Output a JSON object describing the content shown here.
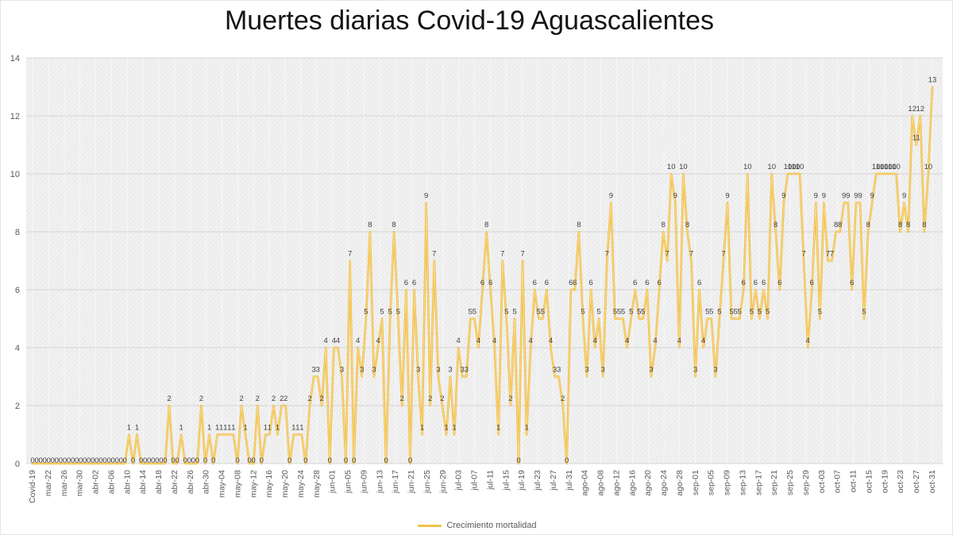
{
  "title": "Muertes diarias Covid-19 Aguascalientes",
  "legend": {
    "label": "Crecimiento mortalidad"
  },
  "colors": {
    "line_outer": "#efb93e",
    "line_inner": "#fbda84",
    "gridline": "#d4d4d4",
    "plot_base": "#ececec",
    "hatch_line": "#f9f9f9",
    "axis_text": "#595959",
    "data_label": "#3f3f3f",
    "title_text": "#141414"
  },
  "chart_data": {
    "type": "line",
    "title": "Muertes diarias Covid-19 Aguascalientes",
    "xlabel": "",
    "ylabel": "",
    "ylim": [
      0,
      14
    ],
    "yticks": [
      0,
      2,
      4,
      6,
      8,
      10,
      12,
      14
    ],
    "grid": true,
    "data_labels": true,
    "legend_position": "bottom",
    "x_tick_labels": [
      "Covid-19",
      "mar-22",
      "mar-26",
      "mar-30",
      "abr-02",
      "abr-06",
      "abr-10",
      "abr-14",
      "abr-18",
      "abr-22",
      "abr-26",
      "abr-30",
      "may-04",
      "may-08",
      "may-12",
      "may-16",
      "may-20",
      "may-24",
      "may-28",
      "jun-01",
      "jun-05",
      "jun-09",
      "jun-13",
      "jun-17",
      "jun-21",
      "jun-25",
      "jun-29",
      "jul-03",
      "jul-07",
      "jul-11",
      "jul-15",
      "jul-19",
      "jul-23",
      "jul-27",
      "jul-31",
      "ago-04",
      "ago-08",
      "ago-12",
      "ago-16",
      "ago-20",
      "ago-24",
      "ago-28",
      "sep-01",
      "sep-05",
      "sep-09",
      "sep-13",
      "sep-17",
      "sep-21",
      "sep-25",
      "sep-29",
      "oct-03",
      "oct-07",
      "oct-11",
      "oct-15",
      "oct-19",
      "oct-23",
      "oct-27",
      "oct-31"
    ],
    "series": [
      {
        "name": "Crecimiento mortalidad",
        "values": [
          0,
          0,
          0,
          0,
          0,
          0,
          0,
          0,
          0,
          0,
          0,
          0,
          0,
          0,
          0,
          0,
          0,
          0,
          0,
          0,
          0,
          0,
          0,
          0,
          1,
          0,
          1,
          0,
          0,
          0,
          0,
          0,
          0,
          0,
          2,
          0,
          0,
          1,
          0,
          0,
          0,
          0,
          2,
          0,
          1,
          0,
          1,
          1,
          1,
          1,
          1,
          0,
          2,
          1,
          0,
          0,
          2,
          0,
          1,
          1,
          2,
          1,
          2,
          2,
          0,
          1,
          1,
          1,
          0,
          2,
          3,
          3,
          2,
          4,
          0,
          4,
          4,
          3,
          0,
          7,
          0,
          4,
          3,
          5,
          8,
          3,
          4,
          5,
          0,
          5,
          8,
          5,
          2,
          6,
          0,
          6,
          3,
          1,
          9,
          2,
          7,
          3,
          2,
          1,
          3,
          1,
          4,
          3,
          3,
          5,
          5,
          4,
          6,
          8,
          6,
          4,
          1,
          7,
          5,
          2,
          5,
          0,
          7,
          1,
          4,
          6,
          5,
          5,
          6,
          4,
          3,
          3,
          2,
          0,
          6,
          6,
          8,
          5,
          3,
          6,
          4,
          5,
          3,
          7,
          9,
          5,
          5,
          5,
          4,
          5,
          6,
          5,
          5,
          6,
          3,
          4,
          6,
          8,
          7,
          10,
          9,
          4,
          10,
          8,
          7,
          3,
          6,
          4,
          5,
          5,
          3,
          5,
          7,
          9,
          5,
          5,
          5,
          6,
          10,
          5,
          6,
          5,
          6,
          5,
          10,
          8,
          6,
          9,
          10,
          10,
          10,
          10,
          7,
          4,
          6,
          9,
          5,
          9,
          7,
          7,
          8,
          8,
          9,
          9,
          6,
          9,
          9,
          5,
          8,
          9,
          10,
          10,
          10,
          10,
          10,
          10,
          8,
          9,
          8,
          12,
          11,
          12,
          8,
          10,
          13
        ]
      }
    ]
  }
}
